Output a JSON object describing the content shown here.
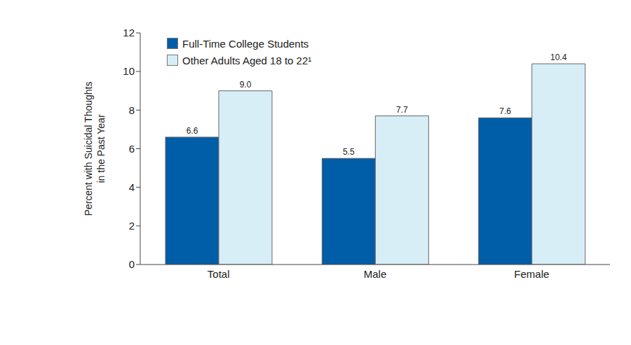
{
  "chart_data": {
    "type": "bar",
    "categories": [
      "Total",
      "Male",
      "Female"
    ],
    "series": [
      {
        "name": "Full-Time College Students",
        "color": "#005da8",
        "values": [
          6.6,
          5.5,
          7.6
        ]
      },
      {
        "name": "Other Adults Aged 18 to 22¹",
        "color": "#d7eef6",
        "values": [
          9.0,
          7.7,
          10.4
        ]
      }
    ],
    "ylabel": "Percent with Suicidal Thoughts\nin the Past Year",
    "ylim": [
      0,
      12
    ],
    "yticks": [
      0,
      2,
      4,
      6,
      8,
      10,
      12
    ],
    "grid": false,
    "legend": "upper left",
    "data_labels": true,
    "value_labels": [
      [
        "6.6",
        "5.5",
        "7.6"
      ],
      [
        "9.0",
        "7.7",
        "10.4"
      ]
    ]
  }
}
